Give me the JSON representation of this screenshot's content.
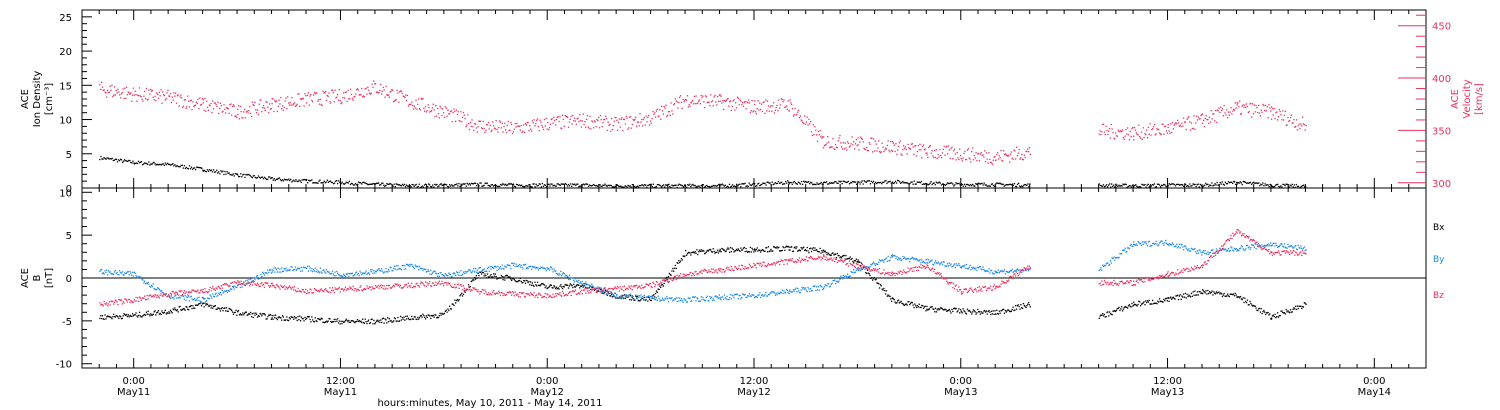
{
  "colors": {
    "black": "#000000",
    "pink": "#e8325f",
    "blue": "#1f8be8"
  },
  "chart_data": [
    {
      "type": "scatter",
      "ylabel": [
        "ACE",
        "Ion Density",
        "[cm⁻³]"
      ],
      "y2label": [
        "ACE",
        "Velocity",
        "[km/s]"
      ],
      "ylim": [
        0,
        26
      ],
      "y2lim": [
        295,
        465
      ],
      "yticks": [
        "0",
        "5",
        "10",
        "15",
        "20",
        "25"
      ],
      "y2ticks": [
        "300",
        "350",
        "400",
        "450"
      ],
      "series": [
        {
          "color": "#000000",
          "axis": "left",
          "x": [
            -2,
            0,
            2,
            4,
            6,
            8,
            10,
            12,
            14,
            16,
            18,
            20,
            22,
            24,
            26,
            28,
            30,
            32,
            34,
            36,
            38,
            40,
            42,
            44,
            46,
            48,
            50,
            52,
            53.5,
            56,
            58,
            60,
            62,
            64,
            66,
            68
          ],
          "y": [
            4.5,
            3.8,
            3.5,
            2.8,
            2.0,
            1.4,
            1.1,
            0.9,
            0.6,
            0.4,
            0.5,
            0.6,
            0.5,
            0.5,
            0.5,
            0.4,
            0.4,
            0.4,
            0.4,
            0.6,
            0.9,
            0.8,
            0.9,
            1.0,
            0.8,
            0.6,
            0.6,
            0.5,
            null,
            0.5,
            0.4,
            0.5,
            0.5,
            0.9,
            0.5,
            0.3
          ]
        },
        {
          "color": "#e8325f",
          "axis": "right",
          "x": [
            -2,
            0,
            2,
            4,
            6,
            8,
            10,
            12,
            14,
            16,
            18,
            20,
            22,
            24,
            26,
            28,
            30,
            32,
            34,
            36,
            38,
            40,
            42,
            44,
            46,
            48,
            50,
            52,
            53.5,
            56,
            58,
            60,
            62,
            64,
            66,
            68
          ],
          "y": [
            390,
            385,
            382,
            375,
            368,
            375,
            380,
            383,
            392,
            378,
            368,
            355,
            352,
            357,
            360,
            356,
            362,
            380,
            378,
            373,
            375,
            340,
            338,
            335,
            330,
            328,
            325,
            330,
            null,
            350,
            348,
            352,
            360,
            372,
            368,
            355
          ]
        }
      ]
    },
    {
      "type": "scatter",
      "ylabel": [
        "ACE",
        "B",
        "[nT]"
      ],
      "ylim": [
        -10.5,
        10.5
      ],
      "yticks": [
        "-10",
        "-5",
        "0",
        "5",
        "10"
      ],
      "legend": [
        "Bx",
        "By",
        "Bz"
      ],
      "series": [
        {
          "name": "Bx",
          "color": "#000000",
          "x": [
            -2,
            0,
            2,
            4,
            6,
            8,
            10,
            12,
            14,
            16,
            18,
            20,
            22,
            24,
            26,
            28,
            30,
            32,
            34,
            36,
            38,
            40,
            42,
            44,
            46,
            48,
            50,
            52,
            53.5,
            56,
            58,
            60,
            62,
            64,
            66,
            68
          ],
          "y": [
            -4.5,
            -4.3,
            -3.8,
            -3.0,
            -4.0,
            -4.5,
            -4.7,
            -5.0,
            -5.0,
            -4.6,
            -4.2,
            0.5,
            0.0,
            -1.0,
            -0.8,
            -2.0,
            -2.5,
            3.0,
            3.3,
            3.4,
            3.5,
            3.2,
            2.0,
            -2.5,
            -3.5,
            -3.8,
            -4.0,
            -3.0,
            null,
            -4.5,
            -3.0,
            -2.5,
            -1.5,
            -2.0,
            -4.5,
            -3.0
          ]
        },
        {
          "name": "By",
          "color": "#1f8be8",
          "x": [
            -2,
            0,
            2,
            4,
            6,
            8,
            10,
            12,
            14,
            16,
            18,
            20,
            22,
            24,
            26,
            28,
            30,
            32,
            34,
            36,
            38,
            40,
            42,
            44,
            46,
            48,
            50,
            52,
            53.5,
            56,
            58,
            60,
            62,
            64,
            66,
            68
          ],
          "y": [
            0.8,
            0.5,
            -2.0,
            -2.5,
            -1.0,
            1.0,
            1.2,
            0.5,
            0.8,
            1.5,
            0.3,
            1.0,
            1.5,
            1.2,
            -0.5,
            -2.0,
            -2.3,
            -2.5,
            -2.2,
            -2.0,
            -1.5,
            -1.0,
            1.0,
            2.5,
            2.0,
            1.5,
            0.8,
            1.0,
            null,
            1.0,
            4.0,
            4.2,
            3.0,
            3.5,
            4.0,
            3.5
          ]
        },
        {
          "name": "Bz",
          "color": "#e8325f",
          "x": [
            -2,
            0,
            2,
            4,
            6,
            8,
            10,
            12,
            14,
            16,
            18,
            20,
            22,
            24,
            26,
            28,
            30,
            32,
            34,
            36,
            38,
            40,
            42,
            44,
            46,
            48,
            50,
            52,
            53.5,
            56,
            58,
            60,
            62,
            64,
            66,
            68
          ],
          "y": [
            -3.0,
            -2.5,
            -1.8,
            -1.5,
            -0.5,
            -0.8,
            -1.5,
            -1.3,
            -1.0,
            -0.8,
            -0.5,
            -1.5,
            -1.8,
            -2.0,
            -1.5,
            -1.2,
            -0.8,
            0.5,
            1.0,
            1.5,
            2.0,
            2.5,
            1.5,
            0.5,
            1.5,
            -1.5,
            -1.0,
            1.5,
            null,
            -0.5,
            -0.5,
            0.5,
            1.5,
            5.5,
            3.0,
            3.0
          ]
        }
      ]
    }
  ],
  "x_axis": {
    "range_hours": [
      -3,
      75
    ],
    "ticks": [
      {
        "hour": 0,
        "time": "0:00",
        "day": "May11"
      },
      {
        "hour": 12,
        "time": "12:00",
        "day": "May11"
      },
      {
        "hour": 24,
        "time": "0:00",
        "day": "May12"
      },
      {
        "hour": 36,
        "time": "12:00",
        "day": "May12"
      },
      {
        "hour": 48,
        "time": "0:00",
        "day": "May13"
      },
      {
        "hour": 60,
        "time": "12:00",
        "day": "May13"
      },
      {
        "hour": 72,
        "time": "0:00",
        "day": "May14"
      }
    ],
    "label": "hours:minutes, May 10, 2011 - May 14, 2011"
  }
}
